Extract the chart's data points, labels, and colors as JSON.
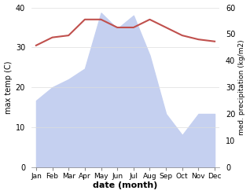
{
  "months": [
    "Jan",
    "Feb",
    "Mar",
    "Apr",
    "May",
    "Jun",
    "Jul",
    "Aug",
    "Sep",
    "Oct",
    "Nov",
    "Dec"
  ],
  "temperature": [
    30.5,
    32.5,
    33.0,
    37.0,
    37.0,
    35.0,
    35.0,
    37.0,
    35.0,
    33.0,
    32.0,
    31.5
  ],
  "precipitation": [
    25,
    30,
    33,
    37,
    58,
    52,
    57,
    42,
    20,
    12,
    20,
    20
  ],
  "temp_color": "#c0504d",
  "precip_fill_color": "#c5d0f0",
  "temp_ylim": [
    0,
    40
  ],
  "precip_ylim": [
    0,
    60
  ],
  "xlabel": "date (month)",
  "ylabel_left": "max temp (C)",
  "ylabel_right": "med. precipitation (kg/m2)",
  "bg_color": "#ffffff",
  "temp_linewidth": 1.5,
  "grid_color": "#dddddd"
}
